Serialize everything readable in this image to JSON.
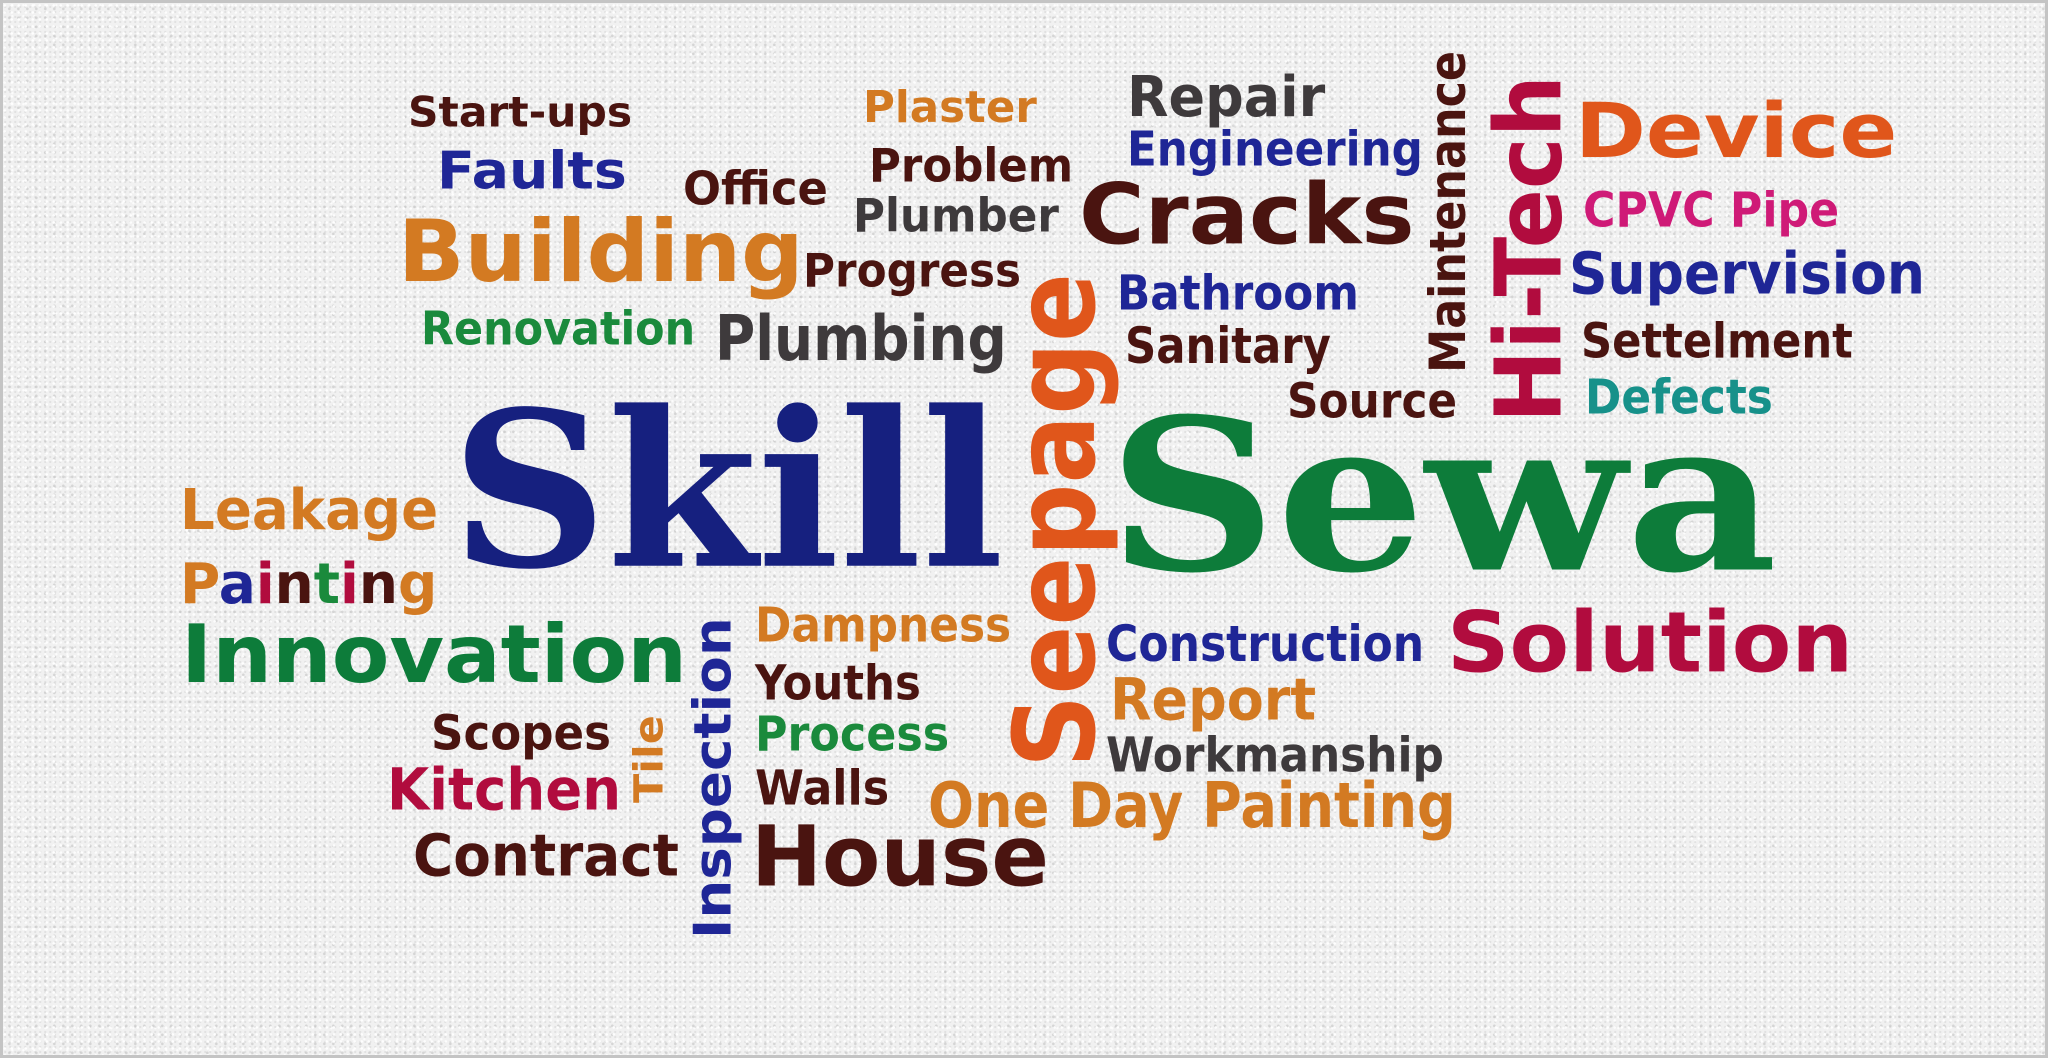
{
  "words": {
    "skill": {
      "text": "Skill",
      "color": "#16207f"
    },
    "sewa": {
      "text": "Sewa",
      "color": "#0d7c3a"
    },
    "seepage": {
      "text": "Seepage",
      "color": "#e0561b"
    },
    "hitech": {
      "text": "Hi-Tech",
      "color": "#b10c3e"
    },
    "maintenance": {
      "text": "Maintenance",
      "color": "#4a1410"
    },
    "inspection": {
      "text": "Inspection",
      "color": "#1f2696"
    },
    "tile": {
      "text": "Tile",
      "color": "#d37a22"
    },
    "startups": {
      "text": "Start-ups",
      "color": "#4a1410"
    },
    "faults": {
      "text": "Faults",
      "color": "#1f2696"
    },
    "office": {
      "text": "Office",
      "color": "#4a1410"
    },
    "building": {
      "text": "Building",
      "color": "#d37a22"
    },
    "renovation": {
      "text": "Renovation",
      "color": "#1a8a3c"
    },
    "plaster": {
      "text": "Plaster",
      "color": "#d37a22"
    },
    "problem": {
      "text": "Problem",
      "color": "#4a1410"
    },
    "plumber": {
      "text": "Plumber",
      "color": "#3e3a3c"
    },
    "progress": {
      "text": "Progress",
      "color": "#4a1410"
    },
    "plumbing": {
      "text": "Plumbing",
      "color": "#3e3a3c"
    },
    "repair": {
      "text": "Repair",
      "color": "#3e3a3c"
    },
    "engineering": {
      "text": "Engineering",
      "color": "#1f2696"
    },
    "cracks": {
      "text": "Cracks",
      "color": "#4a1410"
    },
    "bathroom": {
      "text": "Bathroom",
      "color": "#1f2696"
    },
    "sanitary": {
      "text": "Sanitary",
      "color": "#4a1410"
    },
    "source": {
      "text": "Source",
      "color": "#4a1410"
    },
    "device": {
      "text": "Device",
      "color": "#e0561b"
    },
    "cpvc": {
      "text": "CPVC Pipe",
      "color": "#cf1a77"
    },
    "supervision": {
      "text": "Supervision",
      "color": "#1f2696"
    },
    "settelment": {
      "text": "Settelment",
      "color": "#4a1410"
    },
    "defects": {
      "text": "Defects",
      "color": "#17918a"
    },
    "leakage": {
      "text": "Leakage",
      "color": "#d37a22"
    },
    "painting": {
      "text": "Painting",
      "letter_colors": [
        "#d37a22",
        "#1f2696",
        "#b10c3e",
        "#4a1410",
        "#1a8a3c",
        "#b10c3e",
        "#4a1410",
        "#d37a22"
      ]
    },
    "innovation": {
      "text": "Innovation",
      "color": "#0d7c3a"
    },
    "dampness": {
      "text": "Dampness",
      "color": "#d37a22"
    },
    "youths": {
      "text": "Youths",
      "color": "#4a1410"
    },
    "process": {
      "text": "Process",
      "color": "#1a8a3c"
    },
    "walls": {
      "text": "Walls",
      "color": "#4a1410"
    },
    "house": {
      "text": "House",
      "color": "#4a1410"
    },
    "scopes": {
      "text": "Scopes",
      "color": "#4a1410"
    },
    "kitchen": {
      "text": "Kitchen",
      "color": "#b10c3e"
    },
    "contract": {
      "text": "Contract",
      "color": "#4a1410"
    },
    "construction": {
      "text": "Construction",
      "color": "#1f2696"
    },
    "report": {
      "text": "Report",
      "color": "#d37a22"
    },
    "workmanship": {
      "text": "Workmanship",
      "color": "#3e3a3c"
    },
    "onedaypainting": {
      "text": "One Day Painting",
      "color": "#d37a22"
    },
    "solution": {
      "text": "Solution",
      "color": "#b10c3e"
    }
  }
}
